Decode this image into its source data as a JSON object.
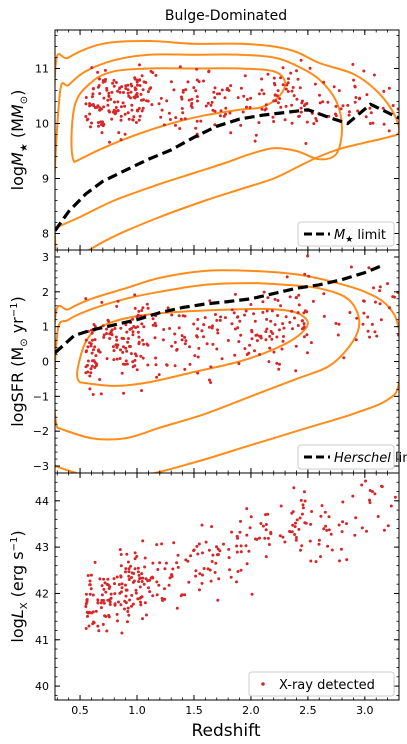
{
  "chart_data": {
    "type": "scatter",
    "title": "Bulge-Dominated",
    "xlabel": "Redshift",
    "xlim": [
      0.28,
      3.3
    ],
    "x_ticks": [
      0.5,
      1.0,
      1.5,
      2.0,
      2.5,
      3.0
    ],
    "x_tick_labels": [
      "0.5",
      "1.0",
      "1.5",
      "2.0",
      "2.5",
      "3.0"
    ],
    "colors": {
      "points": "#d62728",
      "contours": "#ff8c1a",
      "limit": "#000000"
    },
    "panels": [
      {
        "id": "mass",
        "ylabel_main": "log",
        "ylabel_sym": "M",
        "ylabel_sub": "★",
        "ylabel_unit": " (M",
        "ylabel_unit_sub": "⊙",
        "ylabel_close": ")",
        "ylim": [
          7.7,
          11.7
        ],
        "y_ticks": [
          8,
          9,
          10,
          11
        ],
        "y_tick_labels": [
          "8",
          "9",
          "10",
          "11"
        ],
        "legend_sym": "M",
        "legend_sub": "★",
        "legend_suffix": " limit",
        "limit_curve": {
          "x": [
            0.28,
            0.4,
            0.55,
            0.7,
            0.9,
            1.1,
            1.3,
            1.5,
            1.7,
            1.9,
            2.1,
            2.3,
            2.5,
            2.7,
            2.85,
            3.05,
            3.3
          ],
          "y": [
            8.05,
            8.4,
            8.72,
            8.95,
            9.15,
            9.35,
            9.52,
            9.75,
            9.95,
            10.08,
            10.15,
            10.2,
            10.25,
            10.1,
            10.0,
            10.35,
            10.1
          ]
        },
        "contours": [
          {
            "x": [
              0.3,
              0.5,
              0.8,
              1.2,
              1.6,
              1.9,
              2.2,
              2.4,
              2.6,
              2.8,
              3.0,
              3.2,
              3.3,
              3.25,
              3.1,
              2.9,
              2.6,
              2.4,
              2.2,
              1.9,
              1.5,
              1.1,
              0.7,
              0.4,
              0.28
            ],
            "y": [
              7.3,
              7.6,
              7.95,
              8.3,
              8.6,
              8.8,
              9.0,
              9.2,
              9.4,
              9.55,
              9.65,
              9.75,
              9.85,
              10.2,
              10.6,
              10.9,
              11.1,
              11.3,
              11.4,
              11.45,
              11.45,
              11.5,
              11.45,
              11.2,
              10.9
            ]
          },
          {
            "x": [
              0.28,
              0.5,
              0.8,
              1.2,
              1.5,
              1.8,
              2.0,
              2.2,
              2.4,
              2.6,
              2.75,
              2.8,
              2.75,
              2.6,
              2.4,
              2.2,
              1.9,
              1.5,
              1.1,
              0.8,
              0.55,
              0.4,
              0.32
            ],
            "y": [
              8.1,
              8.3,
              8.6,
              8.9,
              9.1,
              9.3,
              9.45,
              9.55,
              9.5,
              9.35,
              9.45,
              9.9,
              10.4,
              10.8,
              11.05,
              11.2,
              11.25,
              11.25,
              11.25,
              11.15,
              10.95,
              10.7,
              10.5
            ]
          },
          {
            "x": [
              0.45,
              0.7,
              1.0,
              1.3,
              1.6,
              1.9,
              2.1,
              2.25,
              2.3,
              2.2,
              1.9,
              1.5,
              1.1,
              0.8,
              0.6,
              0.45
            ],
            "y": [
              9.3,
              9.55,
              9.8,
              10.0,
              10.15,
              10.25,
              10.3,
              10.5,
              10.75,
              10.95,
              11.0,
              11.0,
              11.0,
              10.95,
              10.75,
              10.3
            ]
          }
        ],
        "seed": 11
      },
      {
        "id": "sfr",
        "ylabel_main": "logSFR (M",
        "ylabel_unit_sub": "⊙",
        "ylabel_close": " yr",
        "ylabel_sup": "−1",
        "ylabel_end": ")",
        "ylim": [
          -3.2,
          3.2
        ],
        "y_ticks": [
          -3,
          -2,
          -1,
          0,
          1,
          2,
          3
        ],
        "y_tick_labels": [
          "−3",
          "−2",
          "−1",
          "0",
          "1",
          "2",
          "3"
        ],
        "legend_italic": "Herschel",
        "legend_suffix": " limit",
        "limit_curve": {
          "x": [
            0.28,
            0.45,
            0.6,
            0.8,
            1.0,
            1.2,
            1.4,
            1.6,
            1.8,
            2.0,
            2.2,
            2.4,
            2.6,
            2.8,
            3.0,
            3.15
          ],
          "y": [
            0.25,
            0.75,
            0.9,
            1.05,
            1.2,
            1.4,
            1.55,
            1.65,
            1.72,
            1.8,
            1.95,
            2.1,
            2.2,
            2.35,
            2.55,
            2.75
          ]
        },
        "contours": [
          {
            "x": [
              0.28,
              0.6,
              1.0,
              1.5,
              2.0,
              2.5,
              2.9,
              3.2,
              3.3,
              3.3,
              3.2,
              3.0,
              2.7,
              2.4,
              2.0,
              1.6,
              1.2,
              0.9,
              0.6,
              0.4,
              0.28
            ],
            "y": [
              -3.0,
              -3.3,
              -3.3,
              -2.9,
              -2.4,
              -1.9,
              -1.5,
              -1.1,
              -0.6,
              0.9,
              1.6,
              2.0,
              2.3,
              2.5,
              2.6,
              2.6,
              2.4,
              2.1,
              1.8,
              1.5,
              1.2
            ]
          },
          {
            "x": [
              0.3,
              0.6,
              0.9,
              1.2,
              1.6,
              2.0,
              2.4,
              2.7,
              2.9,
              2.95,
              2.85,
              2.6,
              2.3,
              2.0,
              1.6,
              1.2,
              0.9,
              0.6,
              0.4,
              0.3
            ],
            "y": [
              -1.9,
              -2.2,
              -2.2,
              -1.9,
              -1.5,
              -1.0,
              -0.5,
              -0.1,
              0.6,
              1.2,
              1.8,
              2.1,
              2.2,
              2.25,
              2.2,
              2.0,
              1.8,
              1.5,
              1.2,
              0.8
            ]
          },
          {
            "x": [
              0.5,
              0.8,
              1.1,
              1.5,
              1.9,
              2.2,
              2.4,
              2.5,
              2.4,
              2.2,
              1.9,
              1.5,
              1.1,
              0.8,
              0.6,
              0.5
            ],
            "y": [
              -0.6,
              -0.7,
              -0.6,
              -0.3,
              0.0,
              0.35,
              0.7,
              1.1,
              1.4,
              1.5,
              1.5,
              1.45,
              1.35,
              1.15,
              0.8,
              0.1
            ]
          }
        ],
        "seed": 23
      },
      {
        "id": "lx",
        "ylabel_main": "log",
        "ylabel_sym": "L",
        "ylabel_sub": "X",
        "ylabel_unit": " (erg s",
        "ylabel_sup": "−1",
        "ylabel_end": ")",
        "ylim": [
          39.7,
          44.6
        ],
        "y_ticks": [
          40,
          41,
          42,
          43,
          44
        ],
        "y_tick_labels": [
          "40",
          "41",
          "42",
          "43",
          "44"
        ],
        "legend_label": "X-ray detected",
        "seed": 37
      }
    ]
  }
}
